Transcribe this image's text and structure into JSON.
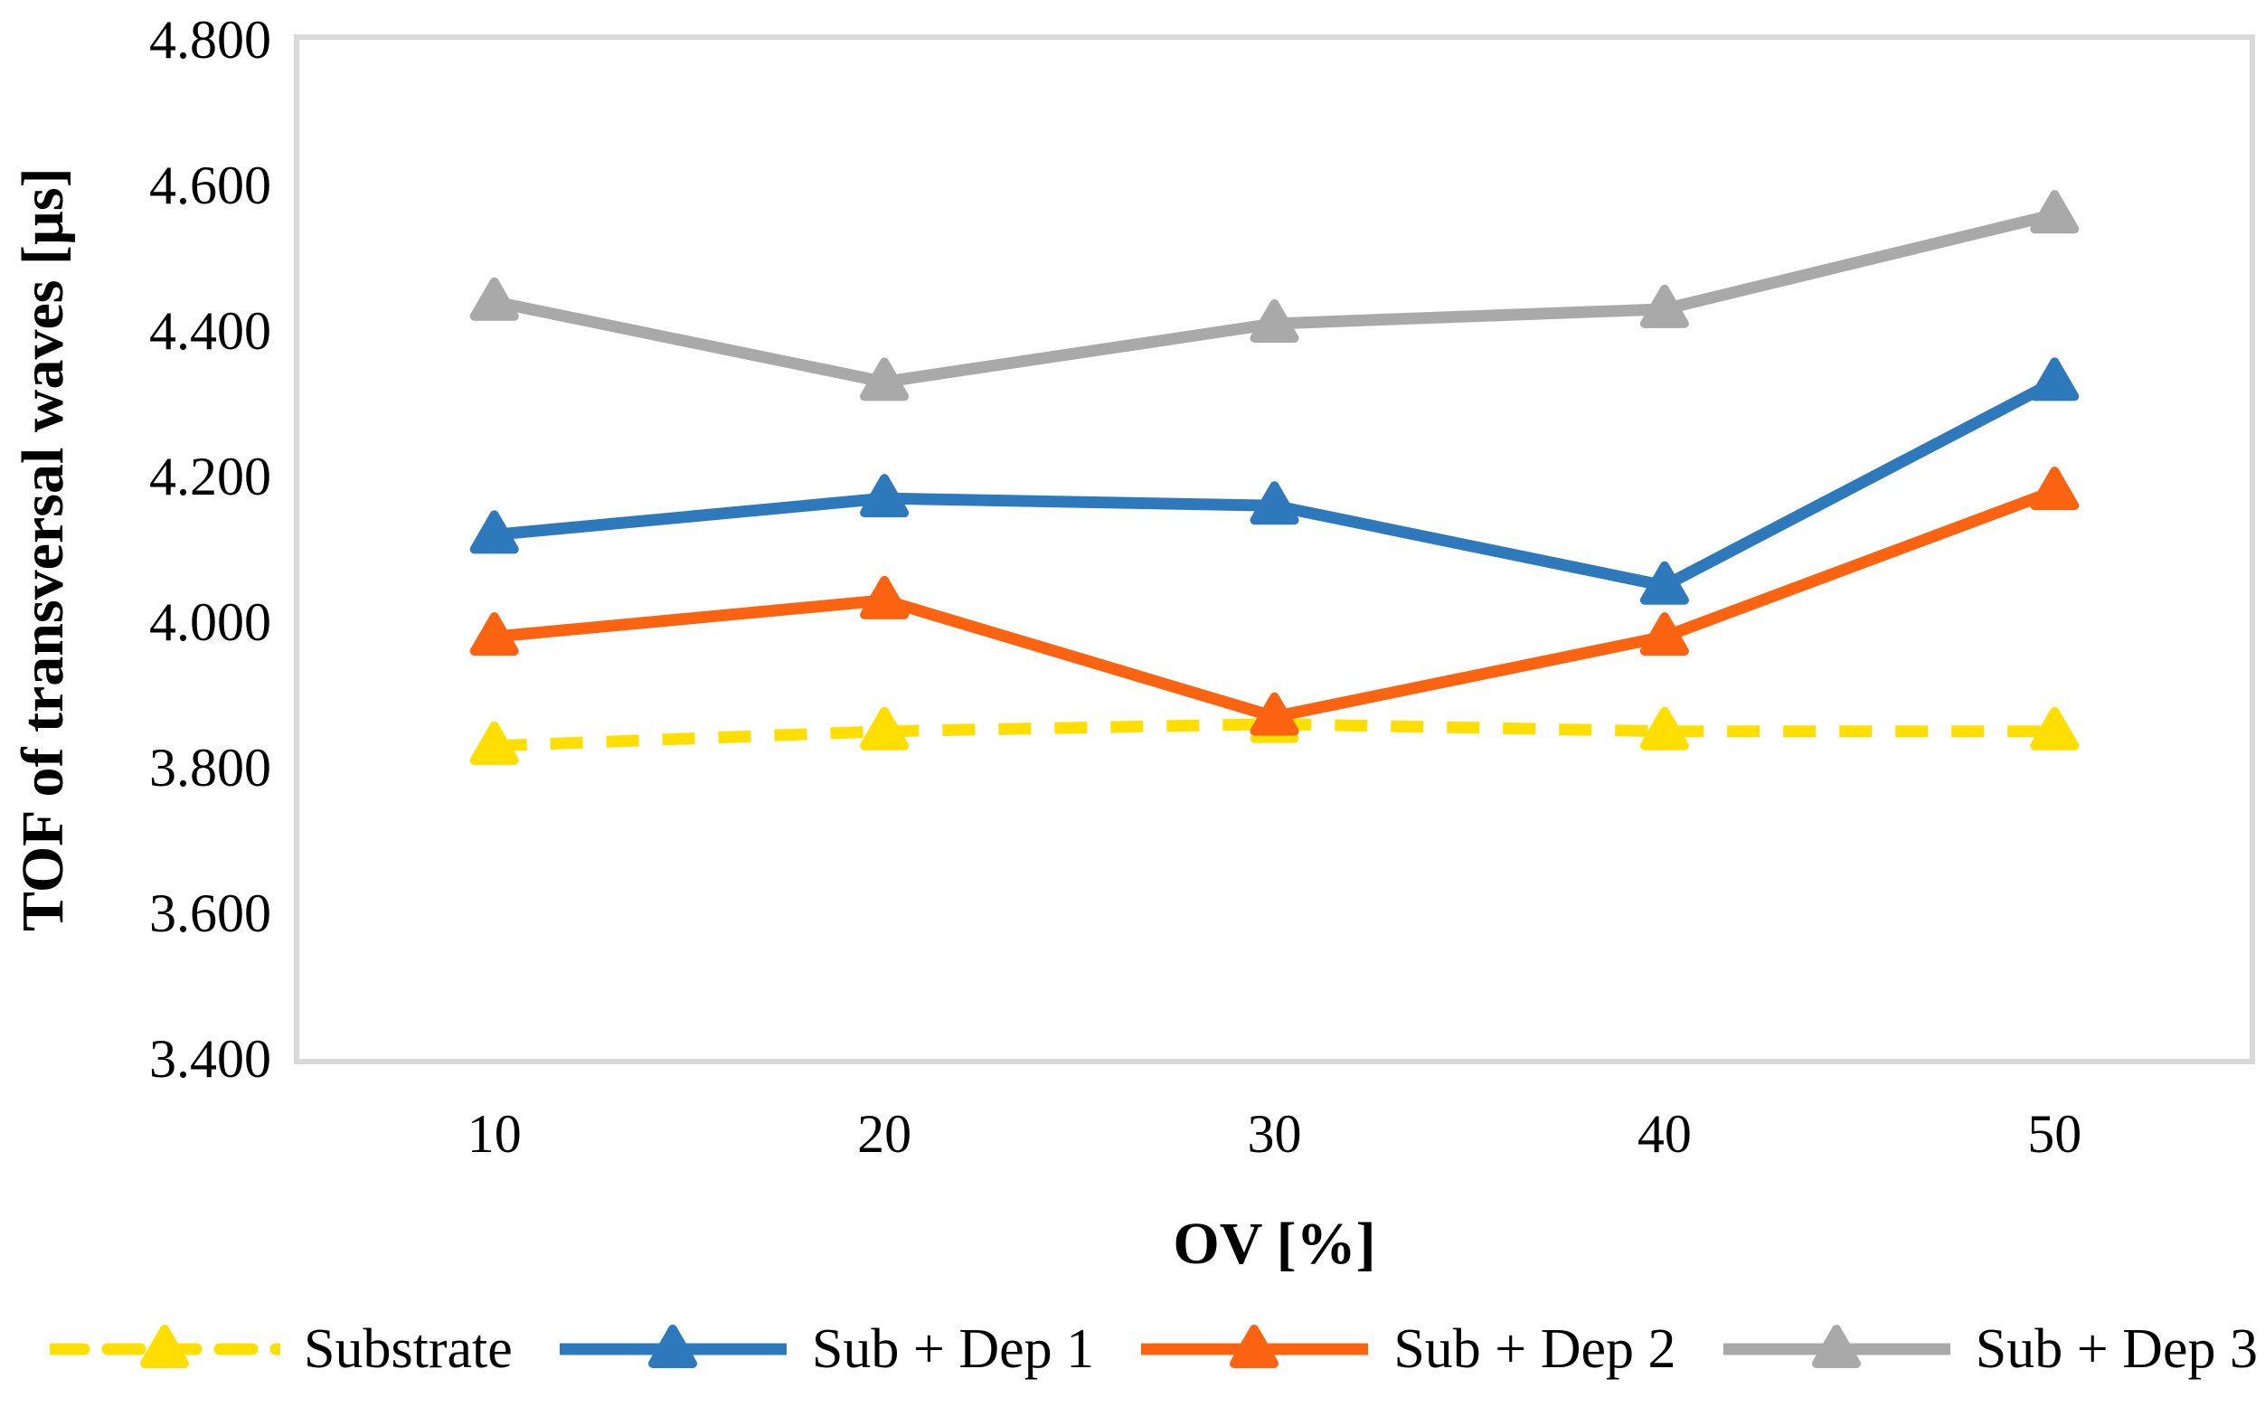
{
  "chart_data": {
    "type": "line",
    "title": "",
    "xlabel": "OV [%]",
    "ylabel": "TOF of transversal waves [µs]",
    "categories": [
      "10",
      "20",
      "30",
      "40",
      "50"
    ],
    "ylim": [
      3.4,
      4.8
    ],
    "y_tick_labels": [
      "4.800",
      "4.600",
      "4.400",
      "4.200",
      "4.000",
      "3.800",
      "3.600",
      "3.400"
    ],
    "grid": false,
    "legend_position": "bottom",
    "plot_border_color": "#D9D9D9",
    "marker_shape": "triangle",
    "series": [
      {
        "name": "Substrate",
        "color": "#FFDE00",
        "style": "dashed",
        "values": [
          3.83,
          3.85,
          3.86,
          3.85,
          3.85
        ]
      },
      {
        "name": "Sub + Dep 1",
        "color": "#2E78BC",
        "style": "solid",
        "values": [
          4.12,
          4.17,
          4.16,
          4.05,
          4.33
        ]
      },
      {
        "name": "Sub + Dep 2",
        "color": "#FB6310",
        "style": "solid",
        "values": [
          3.98,
          4.03,
          3.87,
          3.98,
          4.18
        ]
      },
      {
        "name": "Sub + Dep 3",
        "color": "#A9A9A9",
        "style": "solid",
        "values": [
          4.44,
          4.33,
          4.41,
          4.43,
          4.56
        ]
      }
    ]
  }
}
